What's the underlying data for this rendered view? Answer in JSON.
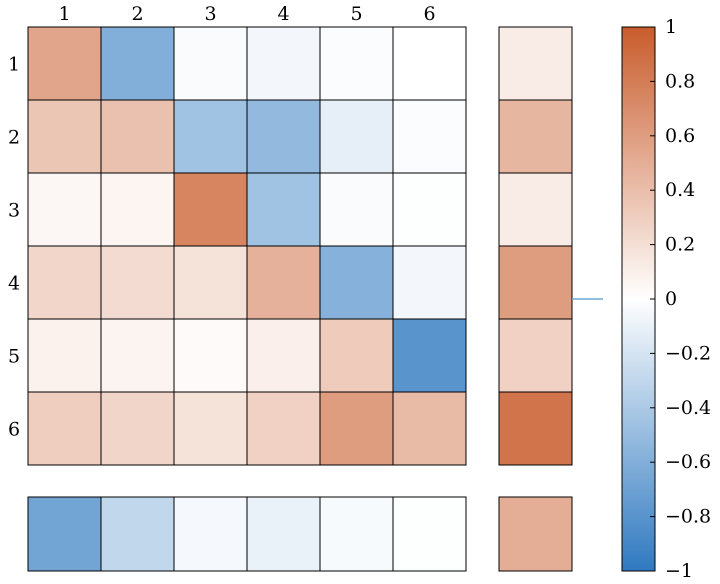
{
  "chart_data": {
    "type": "heatmap",
    "col_labels": [
      "1",
      "2",
      "3",
      "4",
      "5",
      "6"
    ],
    "row_labels": [
      "1",
      "2",
      "3",
      "4",
      "5",
      "6"
    ],
    "matrix": [
      [
        0.55,
        -0.6,
        -0.03,
        -0.06,
        -0.02,
        0.0
      ],
      [
        0.35,
        0.38,
        -0.45,
        -0.52,
        -0.12,
        -0.02
      ],
      [
        0.05,
        0.06,
        0.75,
        -0.45,
        -0.03,
        -0.01
      ],
      [
        0.25,
        0.22,
        0.18,
        0.48,
        -0.58,
        -0.06
      ],
      [
        0.08,
        0.07,
        0.03,
        0.1,
        0.32,
        -0.8
      ],
      [
        0.3,
        0.26,
        0.18,
        0.28,
        0.6,
        0.42
      ]
    ],
    "row_summary": [
      0.12,
      0.45,
      0.12,
      0.6,
      0.28,
      0.85
    ],
    "bottom_row": [
      -0.68,
      -0.3,
      -0.05,
      -0.1,
      -0.04,
      -0.01
    ],
    "bottom_summary": [
      0.5
    ],
    "colorbar": {
      "min": -1,
      "max": 1,
      "ticks": [
        "1",
        "0.8",
        "0.6",
        "0.4",
        "0.2",
        "0",
        "−0.2",
        "−0.4",
        "−0.6",
        "−0.8",
        "−1"
      ],
      "marker_value": 0,
      "low_color": "#2f79c0",
      "mid_color": "#ffffff",
      "high_color": "#c95c2c"
    }
  }
}
